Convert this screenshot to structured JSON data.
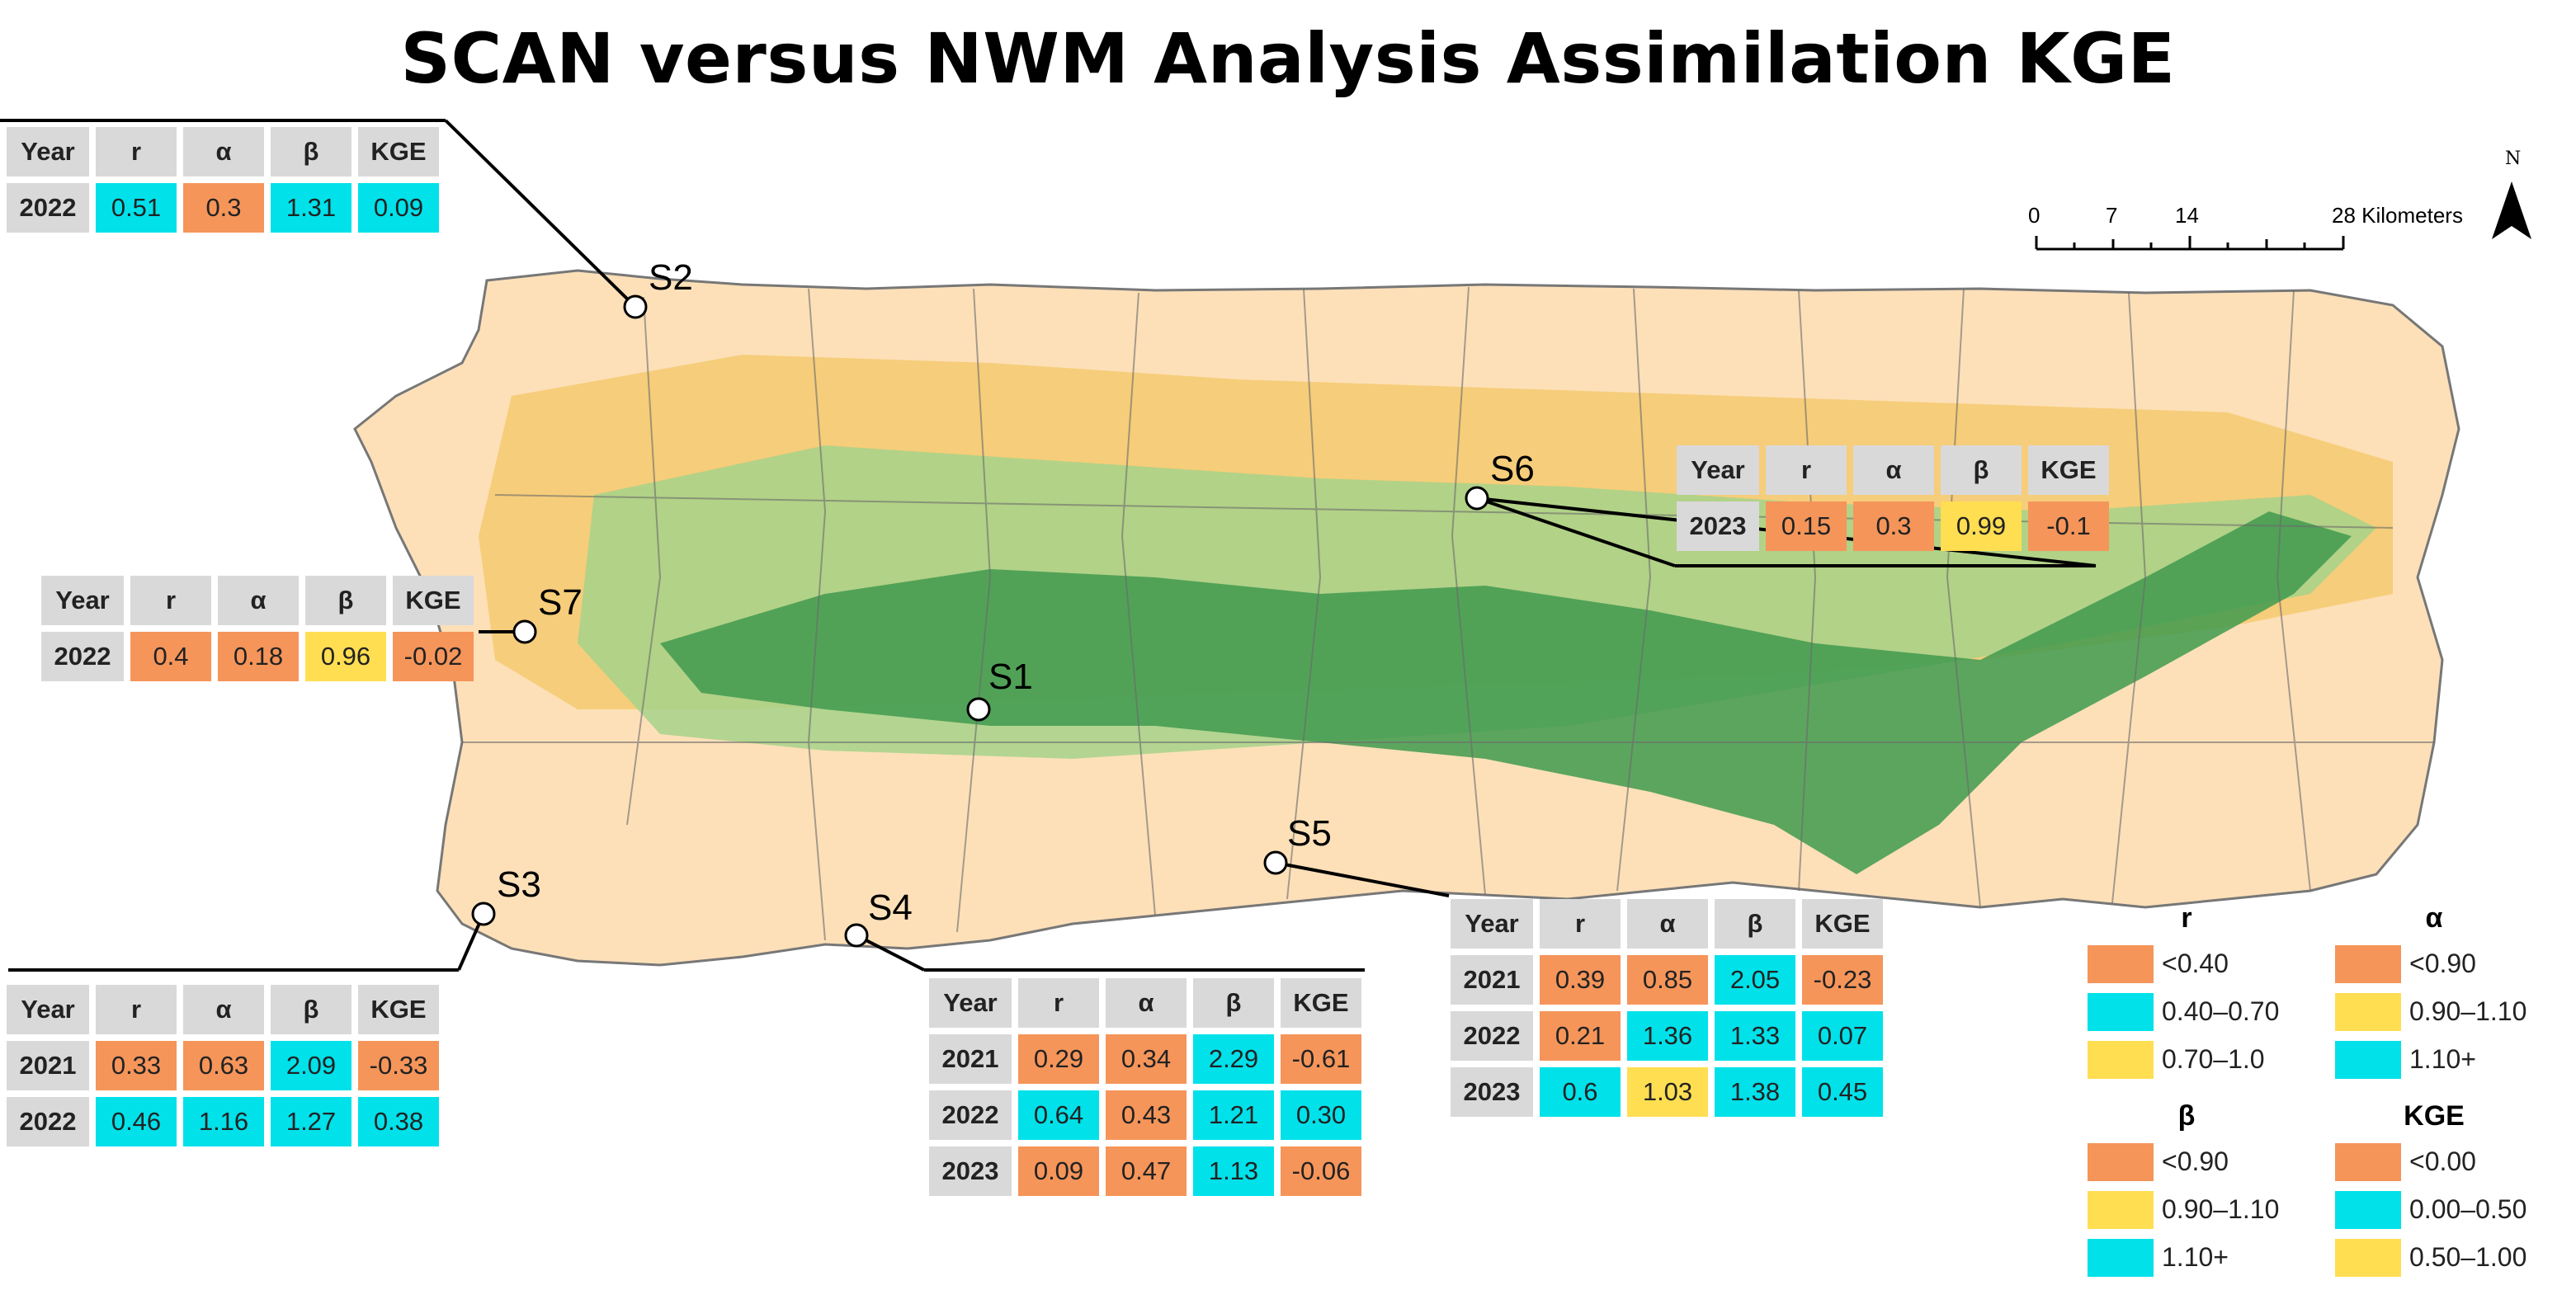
{
  "title": "SCAN versus NWM Analysis Assimilation KGE",
  "table_headers": {
    "year": "Year",
    "r": "r",
    "alpha": "α",
    "beta": "β",
    "kge": "KGE"
  },
  "sites": [
    {
      "id": "S2",
      "label": "S2",
      "rows": [
        {
          "year": "2022",
          "r": "0.51",
          "alpha": "0.3",
          "beta": "1.31",
          "kge": "0.09",
          "colors": [
            "cyan",
            "orange",
            "cyan",
            "cyan"
          ]
        }
      ]
    },
    {
      "id": "S6",
      "label": "S6",
      "rows": [
        {
          "year": "2023",
          "r": "0.15",
          "alpha": "0.3",
          "beta": "0.99",
          "kge": "-0.1",
          "colors": [
            "orange",
            "orange",
            "yellow",
            "orange"
          ]
        }
      ]
    },
    {
      "id": "S7",
      "label": "S7",
      "rows": [
        {
          "year": "2022",
          "r": "0.4",
          "alpha": "0.18",
          "beta": "0.96",
          "kge": "-0.02",
          "colors": [
            "orange",
            "orange",
            "yellow",
            "orange"
          ]
        }
      ]
    },
    {
      "id": "S1",
      "label": "S1",
      "rows": []
    },
    {
      "id": "S3",
      "label": "S3",
      "rows": [
        {
          "year": "2021",
          "r": "0.33",
          "alpha": "0.63",
          "beta": "2.09",
          "kge": "-0.33",
          "colors": [
            "orange",
            "orange",
            "cyan",
            "orange"
          ]
        },
        {
          "year": "2022",
          "r": "0.46",
          "alpha": "1.16",
          "beta": "1.27",
          "kge": "0.38",
          "colors": [
            "cyan",
            "cyan",
            "cyan",
            "cyan"
          ]
        }
      ]
    },
    {
      "id": "S4",
      "label": "S4",
      "rows": [
        {
          "year": "2021",
          "r": "0.29",
          "alpha": "0.34",
          "beta": "2.29",
          "kge": "-0.61",
          "colors": [
            "orange",
            "orange",
            "cyan",
            "orange"
          ]
        },
        {
          "year": "2022",
          "r": "0.64",
          "alpha": "0.43",
          "beta": "1.21",
          "kge": "0.30",
          "colors": [
            "cyan",
            "orange",
            "cyan",
            "cyan"
          ]
        },
        {
          "year": "2023",
          "r": "0.09",
          "alpha": "0.47",
          "beta": "1.13",
          "kge": "-0.06",
          "colors": [
            "orange",
            "orange",
            "cyan",
            "orange"
          ]
        }
      ]
    },
    {
      "id": "S5",
      "label": "S5",
      "rows": [
        {
          "year": "2021",
          "r": "0.39",
          "alpha": "0.85",
          "beta": "2.05",
          "kge": "-0.23",
          "colors": [
            "orange",
            "orange",
            "cyan",
            "orange"
          ]
        },
        {
          "year": "2022",
          "r": "0.21",
          "alpha": "1.36",
          "beta": "1.33",
          "kge": "0.07",
          "colors": [
            "orange",
            "cyan",
            "cyan",
            "cyan"
          ]
        },
        {
          "year": "2023",
          "r": "0.6",
          "alpha": "1.03",
          "beta": "1.38",
          "kge": "0.45",
          "colors": [
            "cyan",
            "yellow",
            "cyan",
            "cyan"
          ]
        }
      ]
    }
  ],
  "colors": {
    "orange": "#f5955a",
    "cyan": "#00e1ea",
    "yellow": "#ffde52",
    "land": "#fde0b8",
    "green_dark": "#3f9a4f",
    "green_light": "#a6d28a",
    "tan": "#f3c766",
    "water": "#ffffff"
  },
  "legend": {
    "r": {
      "title": "r",
      "items": [
        {
          "label": "<0.40",
          "color": "orange"
        },
        {
          "label": "0.40–0.70",
          "color": "cyan"
        },
        {
          "label": "0.70–1.0",
          "color": "yellow"
        }
      ]
    },
    "alpha": {
      "title": "α",
      "items": [
        {
          "label": "<0.90",
          "color": "orange"
        },
        {
          "label": "0.90–1.10",
          "color": "yellow"
        },
        {
          "label": "1.10+",
          "color": "cyan"
        }
      ]
    },
    "beta": {
      "title": "β",
      "items": [
        {
          "label": "<0.90",
          "color": "orange"
        },
        {
          "label": "0.90–1.10",
          "color": "yellow"
        },
        {
          "label": "1.10+",
          "color": "cyan"
        }
      ]
    },
    "kge": {
      "title": "KGE",
      "items": [
        {
          "label": "<0.00",
          "color": "orange"
        },
        {
          "label": "0.00–0.50",
          "color": "cyan"
        },
        {
          "label": "0.50–1.00",
          "color": "yellow"
        }
      ]
    }
  },
  "scalebar": {
    "ticks": [
      "0",
      "7",
      "14",
      "28 Kilometers"
    ]
  },
  "north_label": "N"
}
